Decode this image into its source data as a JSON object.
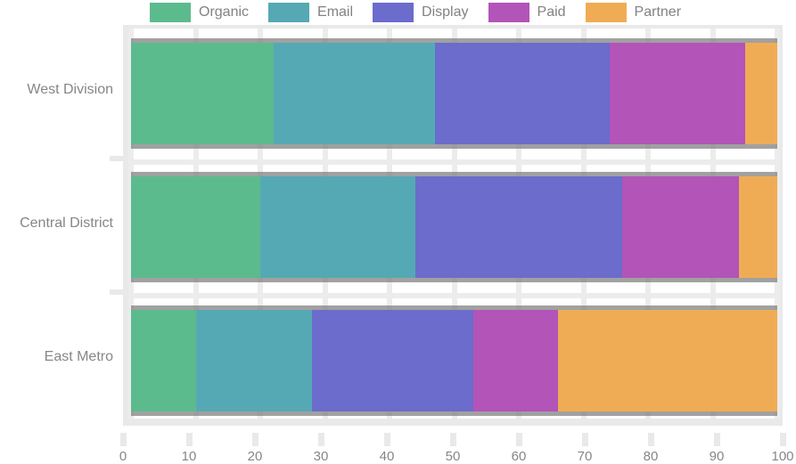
{
  "chart_data": {
    "type": "bar",
    "orientation": "horizontal",
    "stacked": true,
    "title": "",
    "xlabel": "",
    "ylabel": "",
    "xlim": [
      0,
      100
    ],
    "xticks": [
      0,
      10,
      20,
      30,
      40,
      50,
      60,
      70,
      80,
      90,
      100
    ],
    "grid": true,
    "legend_position": "top",
    "categories": [
      "West Division",
      "Central District",
      "East Metro"
    ],
    "series": [
      {
        "name": "Organic",
        "color": "#5cbb8d",
        "values": [
          22,
          20,
          10
        ]
      },
      {
        "name": "Email",
        "color": "#55a9b4",
        "values": [
          25,
          24,
          18
        ]
      },
      {
        "name": "Display",
        "color": "#6b6ccc",
        "values": [
          27,
          32,
          25
        ]
      },
      {
        "name": "Paid",
        "color": "#b254b8",
        "values": [
          21,
          18,
          13
        ]
      },
      {
        "name": "Partner",
        "color": "#f0ac55",
        "values": [
          5,
          6,
          34
        ]
      }
    ]
  },
  "style": {
    "grid_color": "#ececec",
    "spine_color": "#e9e9e9",
    "text_color": "#868686",
    "bar_edge_color": "rgba(125,125,125,0.72)"
  }
}
